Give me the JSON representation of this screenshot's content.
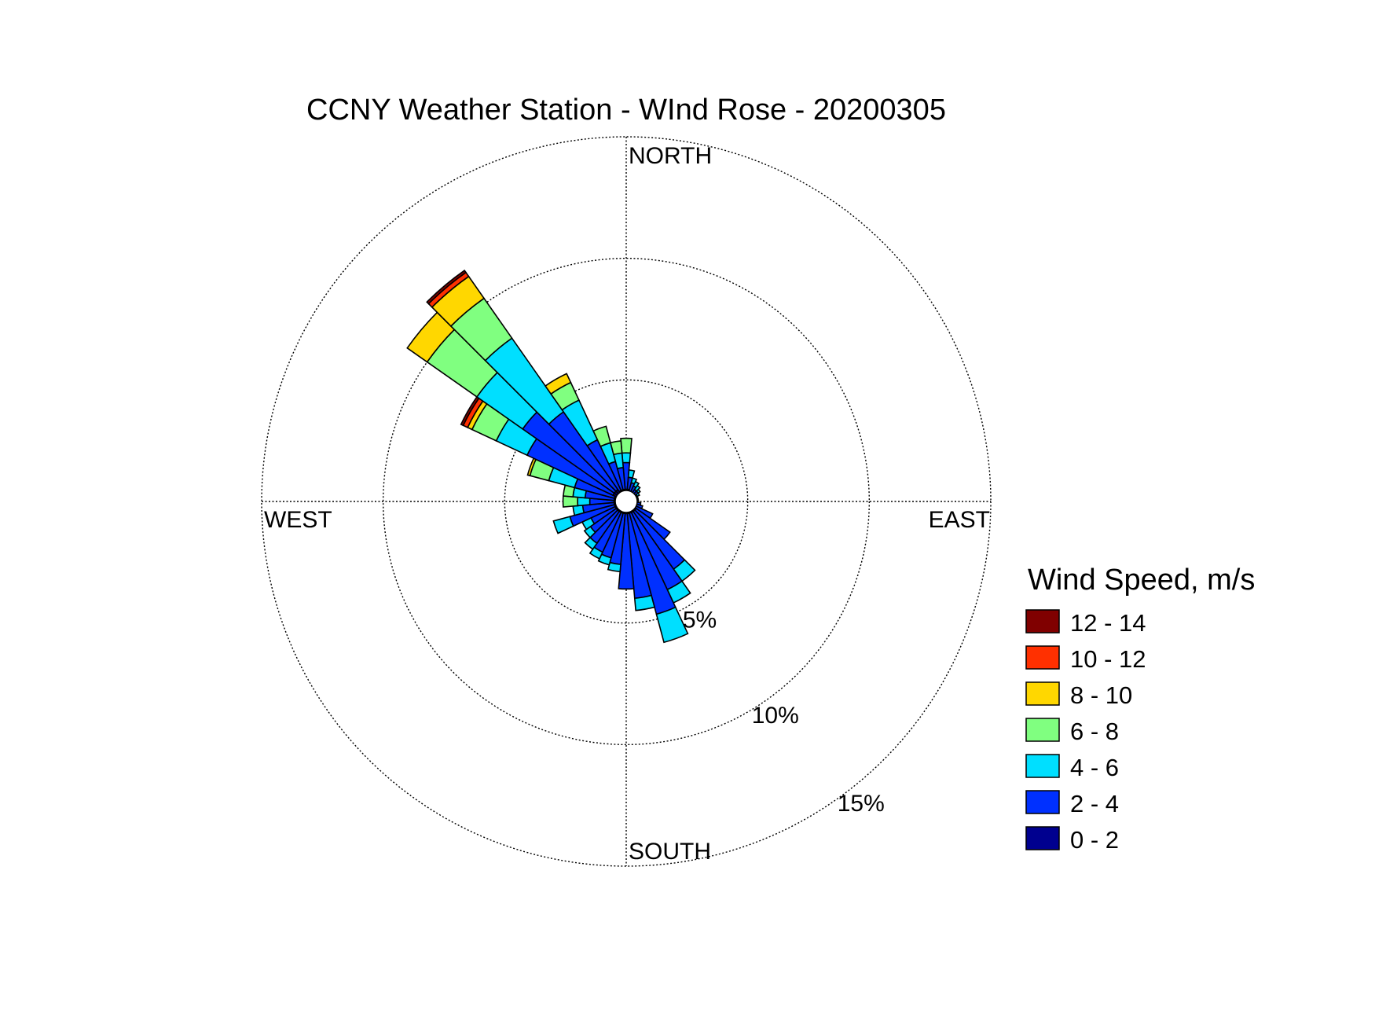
{
  "chart_data": {
    "type": "wind_rose",
    "title": "CCNY Weather Station - WInd Rose - 20200305",
    "directions": [
      "NORTH",
      "EAST",
      "SOUTH",
      "WEST"
    ],
    "rings": [
      {
        "value": 5,
        "label": "5%"
      },
      {
        "value": 10,
        "label": "10%"
      },
      {
        "value": 15,
        "label": "15%"
      }
    ],
    "rmax": 15,
    "legend": {
      "title": "Wind Speed, m/s",
      "bins": [
        {
          "label": "12 - 14",
          "color": "#800000"
        },
        {
          "label": "10 - 12",
          "color": "#ff3000"
        },
        {
          "label": "8 - 10",
          "color": "#ffd700"
        },
        {
          "label": "6 - 8",
          "color": "#80ff80"
        },
        {
          "label": "4 - 6",
          "color": "#00dfff"
        },
        {
          "label": "2 - 4",
          "color": "#0030ff"
        },
        {
          "label": "0 - 2",
          "color": "#00008f"
        }
      ]
    },
    "speed_bins_order": [
      "0 - 2",
      "2 - 4",
      "4 - 6",
      "6 - 8",
      "8 - 10",
      "10 - 12",
      "12 - 14"
    ],
    "sectors": [
      {
        "dir": 0,
        "cum": [
          0.5,
          1.6,
          2.0,
          2.6
        ]
      },
      {
        "dir": 10,
        "cum": [
          0.5,
          1.0,
          1.3
        ]
      },
      {
        "dir": 20,
        "cum": [
          0.4,
          0.8,
          1.0
        ]
      },
      {
        "dir": 30,
        "cum": [
          0.4,
          0.7,
          0.9
        ]
      },
      {
        "dir": 40,
        "cum": [
          0.4,
          0.6,
          0.8
        ]
      },
      {
        "dir": 50,
        "cum": [
          0.4,
          0.6,
          0.7
        ]
      },
      {
        "dir": 60,
        "cum": [
          0.4,
          0.5,
          0.6
        ]
      },
      {
        "dir": 70,
        "cum": [
          0.4,
          0.5
        ]
      },
      {
        "dir": 80,
        "cum": [
          0.4,
          0.5
        ]
      },
      {
        "dir": 90,
        "cum": [
          0.4,
          0.5
        ]
      },
      {
        "dir": 100,
        "cum": [
          0.4,
          0.6
        ]
      },
      {
        "dir": 110,
        "cum": [
          0.4,
          0.7
        ]
      },
      {
        "dir": 120,
        "cum": [
          0.4,
          1.2
        ]
      },
      {
        "dir": 130,
        "cum": [
          0.5,
          2.2
        ]
      },
      {
        "dir": 140,
        "cum": [
          0.5,
          3.4,
          4.0
        ]
      },
      {
        "dir": 150,
        "cum": [
          0.5,
          4.0,
          4.6
        ]
      },
      {
        "dir": 160,
        "cum": [
          0.5,
          4.8,
          6.0
        ]
      },
      {
        "dir": 170,
        "cum": [
          0.5,
          4.0,
          4.5
        ]
      },
      {
        "dir": 180,
        "cum": [
          0.5,
          3.6
        ]
      },
      {
        "dir": 190,
        "cum": [
          0.5,
          2.6,
          2.9
        ]
      },
      {
        "dir": 200,
        "cum": [
          0.5,
          2.4,
          2.7
        ]
      },
      {
        "dir": 210,
        "cum": [
          0.5,
          2.3,
          2.6
        ]
      },
      {
        "dir": 220,
        "cum": [
          0.5,
          2.1,
          2.4
        ]
      },
      {
        "dir": 230,
        "cum": [
          0.5,
          1.8,
          2.1
        ]
      },
      {
        "dir": 240,
        "cum": [
          0.5,
          1.6,
          2.0
        ]
      },
      {
        "dir": 250,
        "cum": [
          0.5,
          2.4,
          3.1
        ]
      },
      {
        "dir": 260,
        "cum": [
          0.5,
          1.8,
          2.2
        ]
      },
      {
        "dir": 270,
        "cum": [
          0.5,
          1.5,
          2.0,
          2.6
        ]
      },
      {
        "dir": 280,
        "cum": [
          0.5,
          1.7,
          2.2,
          2.6
        ]
      },
      {
        "dir": 290,
        "cum": [
          0.5,
          2.2,
          3.3,
          4.1,
          4.2
        ]
      },
      {
        "dir": 300,
        "cum": [
          0.6,
          4.5,
          5.9,
          7.0,
          7.2,
          7.4,
          7.5
        ]
      },
      {
        "dir": 310,
        "cum": [
          0.6,
          5.2,
          7.5,
          10.0,
          11.0
        ]
      },
      {
        "dir": 320,
        "cum": [
          0.6,
          4.5,
          8.2,
          10.2,
          11.3,
          11.5,
          11.6
        ]
      },
      {
        "dir": 330,
        "cum": [
          0.5,
          2.8,
          4.6,
          5.4,
          5.8
        ]
      },
      {
        "dir": 340,
        "cum": [
          0.5,
          1.7,
          2.5,
          3.2
        ]
      },
      {
        "dir": 350,
        "cum": [
          0.5,
          1.4,
          2.0,
          2.5
        ]
      }
    ]
  }
}
